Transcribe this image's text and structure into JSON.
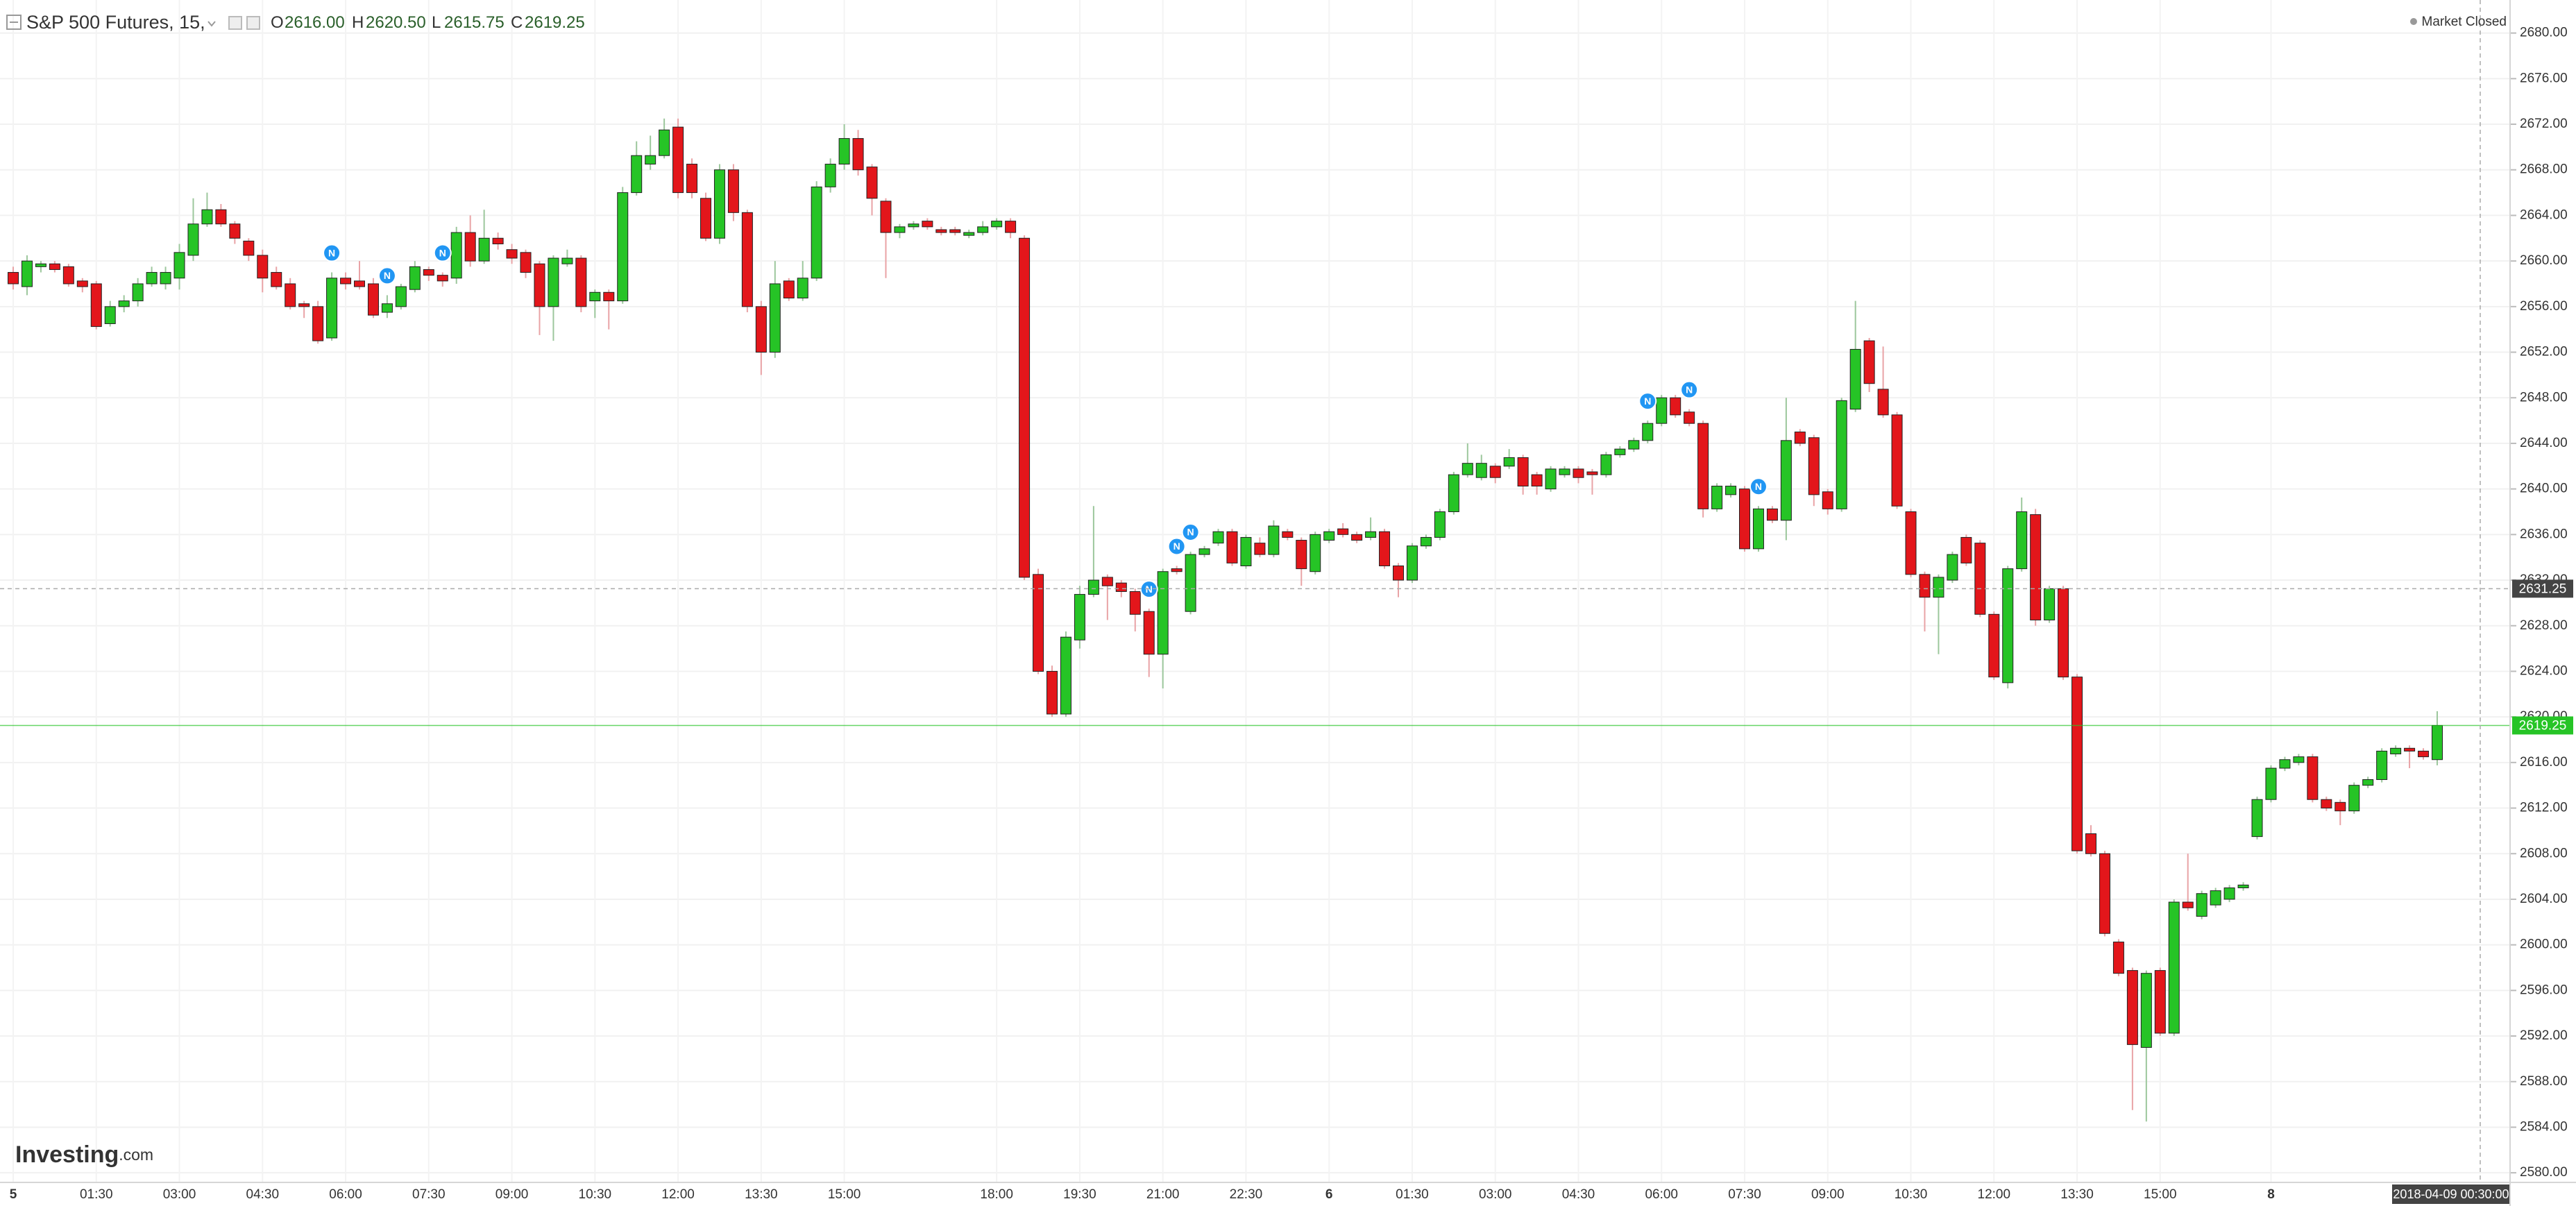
{
  "chart_data": {
    "type": "candlestick",
    "title": "S&P 500 Futures, 15,",
    "ohlc_header": [
      {
        "key": "O",
        "value": "2616.00"
      },
      {
        "key": "H",
        "value": "2620.50"
      },
      {
        "key": "L",
        "value": "2615.75"
      },
      {
        "key": "C",
        "value": "2619.25"
      }
    ],
    "status": "Market Closed",
    "brand": {
      "name": "Investing",
      "suffix": ".com"
    },
    "up_color": "#26c426",
    "down_color": "#e3161b",
    "up_wick": "#9cc79c",
    "down_wick": "#e9a3a6",
    "grid": true,
    "categories": [
      "5",
      null,
      null,
      null,
      null,
      null,
      "01:30",
      null,
      null,
      null,
      null,
      null,
      "03:00",
      null,
      null,
      null,
      null,
      null,
      "04:30",
      null,
      null,
      null,
      null,
      null,
      "06:00",
      null,
      null,
      null,
      null,
      null,
      "07:30",
      null,
      null,
      null,
      null,
      null,
      "09:00",
      null,
      null,
      null,
      null,
      null,
      "10:30",
      null,
      null,
      null,
      null,
      null,
      "12:00",
      null,
      null,
      null,
      null,
      null,
      "13:30",
      null,
      null,
      null,
      null,
      null,
      "15:00",
      null,
      null,
      null,
      null,
      null,
      null,
      null,
      null,
      null,
      null,
      "18:00",
      null,
      null,
      null,
      null,
      null,
      "19:30",
      null,
      null,
      null,
      null,
      null,
      "21:00",
      null,
      null,
      null,
      null,
      null,
      "22:30",
      null,
      null,
      null,
      null,
      null,
      "6",
      null,
      null,
      null,
      null,
      null,
      "01:30",
      null,
      null,
      null,
      null,
      null,
      "03:00",
      null,
      null,
      null,
      null,
      null,
      "04:30",
      null,
      null,
      null,
      null,
      null,
      "06:00",
      null,
      null,
      null,
      null,
      null,
      "07:30",
      null,
      null,
      null,
      null,
      null,
      "09:00",
      null,
      null,
      null,
      null,
      null,
      "10:30",
      null,
      null,
      null,
      null,
      null,
      "12:00",
      null,
      null,
      null,
      null,
      null,
      "13:30",
      null,
      null,
      null,
      null,
      null,
      "15:00",
      null,
      null,
      null,
      null,
      null,
      null,
      null,
      "8",
      null,
      null,
      null,
      null,
      null,
      null,
      null,
      null,
      null,
      null,
      null,
      null
    ],
    "open": [
      2659,
      2657.75,
      2659.5,
      2659.75,
      2659.5,
      2658.25,
      2658,
      2654.5,
      2656,
      2656.5,
      2658,
      2658,
      2658.5,
      2660.5,
      2663.25,
      2664.5,
      2663.25,
      2661.75,
      2660.5,
      2659,
      2658,
      2656.25,
      2656,
      2653.25,
      2658.5,
      2658.25,
      2658,
      2655.5,
      2656,
      2657.5,
      2659.25,
      2658.75,
      2658.5,
      2662.5,
      2660,
      2662,
      2661,
      2660.75,
      2659.75,
      2656,
      2659.75,
      2660.25,
      2656.5,
      2657.25,
      2656.5,
      2666,
      2668.5,
      2669.25,
      2671.75,
      2668.5,
      2665.5,
      2662,
      2668,
      2664.25,
      2656,
      2652,
      2658.25,
      2656.75,
      2658.5,
      2666.5,
      2668.5,
      2670.75,
      2668.25,
      2665.25,
      2662.5,
      2663,
      2663.5,
      2662.75,
      2662.75,
      2662.25,
      2662.5,
      2663,
      2663.5,
      2662,
      2632.5,
      2624,
      2620.25,
      2626.75,
      2630.75,
      2632.25,
      2631.75,
      2631,
      2629.25,
      2625.5,
      2633,
      2629.25,
      2634.25,
      2635.25,
      2636.25,
      2633.25,
      2635.25,
      2634.25,
      2636.25,
      2635.5,
      2632.75,
      2635.5,
      2636.5,
      2636,
      2635.75,
      2636.25,
      2633.25,
      2632,
      2635,
      2635.75,
      2638,
      2641.25,
      2641,
      2642,
      2642,
      2642.75,
      2641.25,
      2640,
      2641.25,
      2641.75,
      2641.5,
      2641.25,
      2643,
      2643.5,
      2644.25,
      2645.75,
      2648,
      2646.75,
      2645.75,
      2638.25,
      2639.5,
      2640,
      2634.75,
      2638.25,
      2637.25,
      2645,
      2644.5,
      2639.75,
      2638.25,
      2647,
      2653,
      2648.75,
      2646.5,
      2638,
      2632.5,
      2630.5,
      2632,
      2635.75,
      2635.25,
      2629,
      2623,
      2633,
      2637.75,
      2628.5,
      2631.25,
      2623.5,
      2609.75,
      2608,
      2600.25,
      2597.75,
      2591,
      2597.75,
      2592.25,
      2603.75,
      2602.5,
      2603.5,
      2604,
      2605,
      2609.5,
      2612.75,
      2615.5,
      2616,
      2616.5,
      2612.75,
      2612.5,
      2611.75,
      2614,
      2614.5,
      2616.75,
      2617.25,
      2617,
      2616.25
    ],
    "high": [
      2659.5,
      2660.5,
      2660,
      2660,
      2659.75,
      2658.5,
      2658.25,
      2656.5,
      2657,
      2658.5,
      2659.5,
      2659.5,
      2661.5,
      2665.5,
      2666,
      2665,
      2663.5,
      2662,
      2661,
      2659.5,
      2658.5,
      2656.5,
      2656.5,
      2659,
      2659,
      2660,
      2658.5,
      2657,
      2658,
      2660,
      2659.5,
      2659,
      2663,
      2664,
      2664.5,
      2662.5,
      2661.5,
      2661,
      2660,
      2660.5,
      2661,
      2660.5,
      2657.5,
      2657.5,
      2666.5,
      2670.5,
      2671,
      2672.5,
      2672.5,
      2669,
      2666,
      2668.5,
      2668.5,
      2664.5,
      2656.5,
      2660,
      2658.5,
      2660,
      2667,
      2669,
      2672,
      2671.5,
      2668.5,
      2665.5,
      2663.25,
      2663.5,
      2663.75,
      2663,
      2663,
      2662.75,
      2663.5,
      2663.75,
      2663.75,
      2662.25,
      2633,
      2624.5,
      2627.5,
      2631.5,
      2638.5,
      2632.5,
      2632,
      2631.25,
      2629.5,
      2633,
      2633.25,
      2634.5,
      2635,
      2636.5,
      2636.5,
      2636,
      2635.75,
      2637.25,
      2636.5,
      2635.75,
      2636.25,
      2636.5,
      2637,
      2636.25,
      2637.5,
      2636.5,
      2633.5,
      2635.25,
      2636,
      2638.25,
      2641.5,
      2644,
      2643,
      2642.25,
      2643.5,
      2643,
      2641.5,
      2642,
      2642,
      2642,
      2641.75,
      2643.25,
      2643.75,
      2644.5,
      2646,
      2648.25,
      2648.25,
      2647,
      2646,
      2640.5,
      2640.5,
      2640.25,
      2638.5,
      2638.5,
      2648,
      2645.25,
      2644.75,
      2640,
      2648,
      2656.5,
      2653.25,
      2652.5,
      2646.75,
      2638.25,
      2632.75,
      2632.5,
      2634.5,
      2636,
      2635.5,
      2629.25,
      2633.25,
      2639.25,
      2638.25,
      2631.5,
      2631.5,
      2623.75,
      2610.5,
      2608.25,
      2600.5,
      2598,
      2597.75,
      2598,
      2604,
      2608,
      2604.75,
      2605,
      2605.25,
      2605.5,
      2613,
      2615.75,
      2616.5,
      2616.75,
      2616.75,
      2613,
      2612.75,
      2614.25,
      2614.75,
      2617.25,
      2617.5,
      2617.5,
      2617.25,
      2620.5
    ],
    "low": [
      2657.5,
      2657,
      2659,
      2659,
      2657.75,
      2657.25,
      2654,
      2654.25,
      2655.5,
      2656,
      2657.75,
      2657.5,
      2657.5,
      2660,
      2663,
      2663,
      2661.5,
      2660,
      2657.25,
      2657.5,
      2655.75,
      2655,
      2652.75,
      2653,
      2657.5,
      2657.5,
      2655,
      2655,
      2655.75,
      2657.25,
      2658.25,
      2657.75,
      2658,
      2659.5,
      2659.75,
      2661,
      2659.75,
      2658.5,
      2653.5,
      2653,
      2659.5,
      2655.5,
      2655,
      2654,
      2656.25,
      2665.75,
      2668,
      2669,
      2665.5,
      2665.5,
      2661.75,
      2661.5,
      2663.5,
      2655.5,
      2650,
      2651.5,
      2656.5,
      2656.5,
      2658.25,
      2666,
      2668,
      2667.5,
      2664,
      2658.5,
      2662,
      2662.75,
      2662.75,
      2662.25,
      2662.25,
      2662,
      2662.25,
      2662.75,
      2662,
      2632,
      2623.75,
      2620,
      2620,
      2626,
      2630.5,
      2628.5,
      2630.5,
      2627.5,
      2623.5,
      2622.5,
      2632.5,
      2629,
      2634,
      2635,
      2633.25,
      2633,
      2634,
      2634,
      2635.5,
      2631.5,
      2632.5,
      2635.25,
      2635.75,
      2635.25,
      2635.5,
      2633,
      2630.5,
      2631.75,
      2634.75,
      2635.5,
      2637.75,
      2641,
      2640.75,
      2640.5,
      2641.75,
      2639.5,
      2639.5,
      2639.75,
      2641,
      2640.5,
      2639.5,
      2641,
      2642.75,
      2643.25,
      2644,
      2645.5,
      2646.25,
      2645.5,
      2637.5,
      2638,
      2639.25,
      2634.5,
      2634.5,
      2637,
      2635.5,
      2643.75,
      2638.5,
      2637.75,
      2638,
      2646.75,
      2648.5,
      2646.25,
      2638.25,
      2632.25,
      2627.5,
      2625.5,
      2631.75,
      2633.25,
      2628.75,
      2623.25,
      2622.5,
      2632.75,
      2628,
      2628.25,
      2623.25,
      2608,
      2607.75,
      2600.75,
      2597.25,
      2585.5,
      2584.5,
      2592,
      2592,
      2603,
      2602.25,
      2603.25,
      2603.75,
      2604.75,
      2609.25,
      2612.5,
      2615.25,
      2615.75,
      2612.5,
      2611.75,
      2610.5,
      2611.5,
      2613.75,
      2614.25,
      2616.5,
      2615.5,
      2616.25,
      2615.75
    ],
    "close": [
      2658,
      2660,
      2659.75,
      2659.25,
      2658,
      2657.75,
      2654.25,
      2656,
      2656.5,
      2658,
      2659,
      2659,
      2660.75,
      2663.25,
      2664.5,
      2663.25,
      2662,
      2660.5,
      2658.5,
      2657.75,
      2656,
      2656,
      2653,
      2658.5,
      2658,
      2657.75,
      2655.25,
      2656.25,
      2657.75,
      2659.5,
      2658.75,
      2658.25,
      2662.5,
      2660,
      2662,
      2661.5,
      2660.25,
      2659,
      2656,
      2660.25,
      2660.25,
      2656,
      2657.25,
      2656.5,
      2666,
      2669.25,
      2669.25,
      2671.5,
      2666,
      2666,
      2662,
      2668,
      2664.25,
      2656,
      2652,
      2658,
      2656.75,
      2658.5,
      2666.5,
      2668.5,
      2670.75,
      2668,
      2665.5,
      2662.5,
      2663,
      2663.25,
      2663,
      2662.5,
      2662.5,
      2662.5,
      2663,
      2663.5,
      2662.5,
      2632.25,
      2624,
      2620.25,
      2627,
      2630.75,
      2632,
      2631.5,
      2631,
      2629,
      2625.5,
      2632.75,
      2632.75,
      2634.25,
      2634.75,
      2636.25,
      2633.5,
      2635.75,
      2634.25,
      2636.75,
      2635.75,
      2633,
      2636,
      2636.25,
      2636,
      2635.5,
      2636.25,
      2633.25,
      2632,
      2635,
      2635.75,
      2638,
      2641.25,
      2642.25,
      2642.25,
      2641,
      2642.75,
      2640.25,
      2640.25,
      2641.75,
      2641.75,
      2641,
      2641.25,
      2643,
      2643.5,
      2644.25,
      2645.75,
      2648,
      2646.5,
      2645.75,
      2638.25,
      2640.25,
      2640.25,
      2634.75,
      2638.25,
      2637.25,
      2644.25,
      2644,
      2639.5,
      2638.25,
      2647.75,
      2652.25,
      2649.25,
      2646.5,
      2638.5,
      2632.5,
      2630.5,
      2632.25,
      2634.25,
      2633.5,
      2629,
      2623.5,
      2633,
      2638,
      2628.5,
      2631.25,
      2623.5,
      2608.25,
      2608,
      2601,
      2597.5,
      2591.25,
      2597.5,
      2592.25,
      2603.75,
      2603.25,
      2604.5,
      2604.75,
      2605,
      2605.25,
      2612.75,
      2615.5,
      2616.25,
      2616.5,
      2612.75,
      2612,
      2611.75,
      2614,
      2614.5,
      2617,
      2617.25,
      2617,
      2616.5,
      2619.25
    ],
    "events": [
      {
        "bar": 23,
        "label": "N"
      },
      {
        "bar": 27,
        "label": "N"
      },
      {
        "bar": 31,
        "label": "N"
      },
      {
        "bar": 82,
        "label": "N"
      },
      {
        "bar": 84,
        "label": "N"
      },
      {
        "bar": 85,
        "label": "N"
      },
      {
        "bar": 118,
        "label": "N"
      },
      {
        "bar": 121,
        "label": "N"
      },
      {
        "bar": 126,
        "label": "N"
      }
    ],
    "crosshair": {
      "price": 2631.25,
      "time": "2018-04-09 00:30:00"
    },
    "ylim": [
      2579.4,
      2682.9
    ],
    "yticks": [
      {
        "value": 2580,
        "label": "2580.00"
      },
      {
        "value": 2584,
        "label": "2584.00"
      },
      {
        "value": 2588,
        "label": "2588.00"
      },
      {
        "value": 2592,
        "label": "2592.00"
      },
      {
        "value": 2596,
        "label": "2596.00"
      },
      {
        "value": 2600,
        "label": "2600.00"
      },
      {
        "value": 2604,
        "label": "2604.00"
      },
      {
        "value": 2608,
        "label": "2608.00"
      },
      {
        "value": 2612,
        "label": "2612.00"
      },
      {
        "value": 2616,
        "label": "2616.00"
      },
      {
        "value": 2620,
        "label": "2620.00"
      },
      {
        "value": 2624,
        "label": "2624.00"
      },
      {
        "value": 2628,
        "label": "2628.00"
      },
      {
        "value": 2632,
        "label": "2632.00"
      },
      {
        "value": 2636,
        "label": "2636.00"
      },
      {
        "value": 2640,
        "label": "2640.00"
      },
      {
        "value": 2644,
        "label": "2644.00"
      },
      {
        "value": 2648,
        "label": "2648.00"
      },
      {
        "value": 2652,
        "label": "2652.00"
      },
      {
        "value": 2656,
        "label": "2656.00"
      },
      {
        "value": 2660,
        "label": "2660.00"
      },
      {
        "value": 2664,
        "label": "2664.00"
      },
      {
        "value": 2668,
        "label": "2668.00"
      },
      {
        "value": 2672,
        "label": "2672.00"
      },
      {
        "value": 2676,
        "label": "2676.00"
      },
      {
        "value": 2680,
        "label": "2680.00"
      }
    ]
  }
}
